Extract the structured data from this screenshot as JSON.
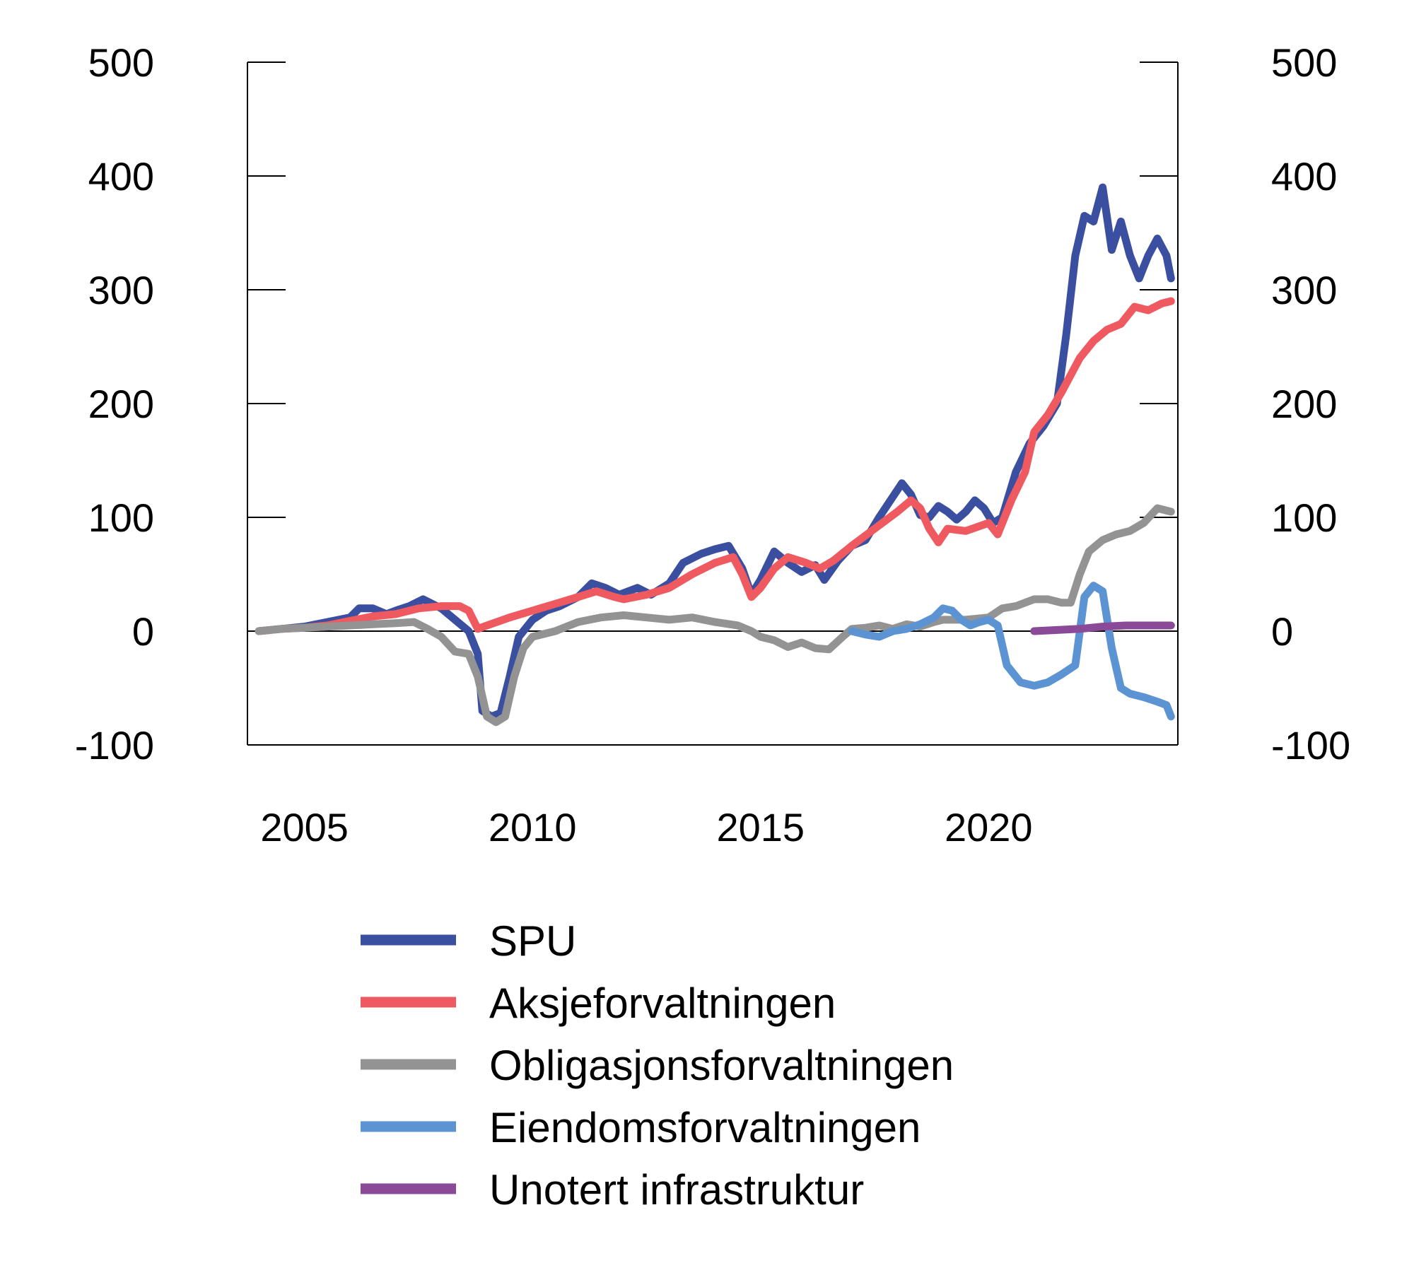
{
  "chart_data": {
    "type": "line",
    "title": "",
    "xlabel": "",
    "ylabel": "",
    "xlim": [
      2003.75,
      2024.15
    ],
    "ylim": [
      -100,
      500
    ],
    "y_ticks": [
      -100,
      0,
      100,
      200,
      300,
      400,
      500
    ],
    "y_tick_labels": [
      "-100",
      "0",
      "100",
      "200",
      "300",
      "400",
      "500"
    ],
    "x_ticks": [
      2005,
      2010,
      2015,
      2020
    ],
    "x_tick_labels": [
      "2005",
      "2010",
      "2015",
      "2020"
    ],
    "grid": false,
    "legend_position": "bottom",
    "series": [
      {
        "name": "SPU",
        "color": "#3b4fa0",
        "points": [
          [
            2004.0,
            0
          ],
          [
            2004.5,
            2
          ],
          [
            2005.0,
            4
          ],
          [
            2005.5,
            8
          ],
          [
            2006.0,
            12
          ],
          [
            2006.2,
            20
          ],
          [
            2006.5,
            20
          ],
          [
            2006.8,
            15
          ],
          [
            2007.0,
            18
          ],
          [
            2007.3,
            22
          ],
          [
            2007.6,
            28
          ],
          [
            2007.8,
            24
          ],
          [
            2008.0,
            20
          ],
          [
            2008.3,
            10
          ],
          [
            2008.6,
            0
          ],
          [
            2008.8,
            -20
          ],
          [
            2008.9,
            -70
          ],
          [
            2009.1,
            -75
          ],
          [
            2009.3,
            -72
          ],
          [
            2009.5,
            -40
          ],
          [
            2009.7,
            -5
          ],
          [
            2010.0,
            10
          ],
          [
            2010.3,
            18
          ],
          [
            2010.6,
            22
          ],
          [
            2011.0,
            30
          ],
          [
            2011.3,
            42
          ],
          [
            2011.6,
            38
          ],
          [
            2011.9,
            32
          ],
          [
            2012.3,
            38
          ],
          [
            2012.6,
            32
          ],
          [
            2013.0,
            42
          ],
          [
            2013.3,
            60
          ],
          [
            2013.7,
            68
          ],
          [
            2014.0,
            72
          ],
          [
            2014.3,
            75
          ],
          [
            2014.6,
            55
          ],
          [
            2014.8,
            32
          ],
          [
            2015.0,
            45
          ],
          [
            2015.3,
            70
          ],
          [
            2015.6,
            60
          ],
          [
            2015.9,
            52
          ],
          [
            2016.2,
            58
          ],
          [
            2016.4,
            45
          ],
          [
            2016.7,
            62
          ],
          [
            2017.0,
            75
          ],
          [
            2017.3,
            80
          ],
          [
            2017.6,
            100
          ],
          [
            2017.9,
            118
          ],
          [
            2018.1,
            130
          ],
          [
            2018.3,
            120
          ],
          [
            2018.5,
            102
          ],
          [
            2018.7,
            100
          ],
          [
            2018.9,
            110
          ],
          [
            2019.1,
            105
          ],
          [
            2019.3,
            98
          ],
          [
            2019.5,
            105
          ],
          [
            2019.7,
            115
          ],
          [
            2019.9,
            108
          ],
          [
            2020.1,
            95
          ],
          [
            2020.3,
            100
          ],
          [
            2020.6,
            140
          ],
          [
            2020.9,
            165
          ],
          [
            2021.2,
            180
          ],
          [
            2021.5,
            200
          ],
          [
            2021.7,
            260
          ],
          [
            2021.9,
            330
          ],
          [
            2022.1,
            365
          ],
          [
            2022.3,
            360
          ],
          [
            2022.5,
            390
          ],
          [
            2022.7,
            335
          ],
          [
            2022.9,
            360
          ],
          [
            2023.1,
            330
          ],
          [
            2023.3,
            310
          ],
          [
            2023.5,
            330
          ],
          [
            2023.7,
            345
          ],
          [
            2023.9,
            330
          ],
          [
            2024.0,
            310
          ]
        ]
      },
      {
        "name": "Aksjeforvaltningen",
        "color": "#ee5a5f",
        "points": [
          [
            2004.0,
            0
          ],
          [
            2004.5,
            2
          ],
          [
            2005.0,
            3
          ],
          [
            2005.5,
            5
          ],
          [
            2006.0,
            9
          ],
          [
            2006.5,
            13
          ],
          [
            2007.0,
            15
          ],
          [
            2007.5,
            20
          ],
          [
            2008.0,
            22
          ],
          [
            2008.4,
            22
          ],
          [
            2008.6,
            18
          ],
          [
            2008.8,
            2
          ],
          [
            2009.0,
            5
          ],
          [
            2009.5,
            12
          ],
          [
            2010.0,
            18
          ],
          [
            2010.5,
            24
          ],
          [
            2011.0,
            30
          ],
          [
            2011.4,
            35
          ],
          [
            2011.8,
            30
          ],
          [
            2012.0,
            28
          ],
          [
            2012.5,
            32
          ],
          [
            2013.0,
            38
          ],
          [
            2013.5,
            50
          ],
          [
            2014.0,
            60
          ],
          [
            2014.4,
            65
          ],
          [
            2014.6,
            50
          ],
          [
            2014.8,
            30
          ],
          [
            2015.0,
            38
          ],
          [
            2015.3,
            55
          ],
          [
            2015.6,
            65
          ],
          [
            2016.0,
            60
          ],
          [
            2016.3,
            55
          ],
          [
            2016.6,
            62
          ],
          [
            2017.0,
            75
          ],
          [
            2017.5,
            90
          ],
          [
            2018.0,
            105
          ],
          [
            2018.3,
            115
          ],
          [
            2018.5,
            108
          ],
          [
            2018.7,
            90
          ],
          [
            2018.9,
            78
          ],
          [
            2019.1,
            90
          ],
          [
            2019.5,
            88
          ],
          [
            2020.0,
            95
          ],
          [
            2020.2,
            85
          ],
          [
            2020.5,
            115
          ],
          [
            2020.8,
            140
          ],
          [
            2021.0,
            175
          ],
          [
            2021.3,
            190
          ],
          [
            2021.6,
            210
          ],
          [
            2022.0,
            240
          ],
          [
            2022.3,
            255
          ],
          [
            2022.6,
            265
          ],
          [
            2022.9,
            270
          ],
          [
            2023.2,
            285
          ],
          [
            2023.5,
            282
          ],
          [
            2023.8,
            288
          ],
          [
            2024.0,
            290
          ]
        ]
      },
      {
        "name": "Obligasjonsforvaltningen",
        "color": "#939393",
        "points": [
          [
            2004.0,
            0
          ],
          [
            2004.5,
            2
          ],
          [
            2005.0,
            3
          ],
          [
            2005.5,
            4
          ],
          [
            2006.0,
            5
          ],
          [
            2006.5,
            6
          ],
          [
            2007.0,
            7
          ],
          [
            2007.4,
            8
          ],
          [
            2007.7,
            2
          ],
          [
            2008.0,
            -5
          ],
          [
            2008.3,
            -18
          ],
          [
            2008.6,
            -20
          ],
          [
            2008.8,
            -40
          ],
          [
            2009.0,
            -75
          ],
          [
            2009.2,
            -80
          ],
          [
            2009.4,
            -75
          ],
          [
            2009.6,
            -40
          ],
          [
            2009.8,
            -15
          ],
          [
            2010.0,
            -5
          ],
          [
            2010.5,
            0
          ],
          [
            2011.0,
            8
          ],
          [
            2011.5,
            12
          ],
          [
            2012.0,
            14
          ],
          [
            2012.5,
            12
          ],
          [
            2013.0,
            10
          ],
          [
            2013.5,
            12
          ],
          [
            2014.0,
            8
          ],
          [
            2014.5,
            5
          ],
          [
            2014.8,
            0
          ],
          [
            2015.0,
            -5
          ],
          [
            2015.3,
            -8
          ],
          [
            2015.6,
            -14
          ],
          [
            2015.9,
            -10
          ],
          [
            2016.2,
            -15
          ],
          [
            2016.5,
            -16
          ],
          [
            2016.8,
            -5
          ],
          [
            2017.0,
            2
          ],
          [
            2017.3,
            3
          ],
          [
            2017.6,
            5
          ],
          [
            2017.9,
            2
          ],
          [
            2018.2,
            6
          ],
          [
            2018.5,
            4
          ],
          [
            2018.8,
            8
          ],
          [
            2019.0,
            10
          ],
          [
            2019.5,
            10
          ],
          [
            2020.0,
            12
          ],
          [
            2020.3,
            20
          ],
          [
            2020.6,
            22
          ],
          [
            2021.0,
            28
          ],
          [
            2021.3,
            28
          ],
          [
            2021.6,
            25
          ],
          [
            2021.8,
            25
          ],
          [
            2022.0,
            50
          ],
          [
            2022.2,
            70
          ],
          [
            2022.5,
            80
          ],
          [
            2022.8,
            85
          ],
          [
            2023.1,
            88
          ],
          [
            2023.4,
            95
          ],
          [
            2023.7,
            108
          ],
          [
            2024.0,
            105
          ]
        ]
      },
      {
        "name": "Eiendomsforvaltningen",
        "color": "#5b93d3",
        "points": [
          [
            2017.0,
            0
          ],
          [
            2017.3,
            -3
          ],
          [
            2017.6,
            -5
          ],
          [
            2017.9,
            0
          ],
          [
            2018.2,
            2
          ],
          [
            2018.5,
            6
          ],
          [
            2018.8,
            12
          ],
          [
            2019.0,
            20
          ],
          [
            2019.2,
            18
          ],
          [
            2019.4,
            10
          ],
          [
            2019.6,
            5
          ],
          [
            2019.8,
            8
          ],
          [
            2020.0,
            10
          ],
          [
            2020.2,
            5
          ],
          [
            2020.4,
            -30
          ],
          [
            2020.7,
            -45
          ],
          [
            2021.0,
            -48
          ],
          [
            2021.3,
            -45
          ],
          [
            2021.6,
            -38
          ],
          [
            2021.9,
            -30
          ],
          [
            2022.1,
            30
          ],
          [
            2022.3,
            40
          ],
          [
            2022.5,
            35
          ],
          [
            2022.7,
            -15
          ],
          [
            2022.9,
            -50
          ],
          [
            2023.1,
            -55
          ],
          [
            2023.4,
            -58
          ],
          [
            2023.7,
            -62
          ],
          [
            2023.9,
            -65
          ],
          [
            2024.0,
            -75
          ]
        ]
      },
      {
        "name": "Unotert infrastruktur",
        "color": "#8b4a97",
        "points": [
          [
            2021.0,
            0
          ],
          [
            2021.5,
            1
          ],
          [
            2022.0,
            2
          ],
          [
            2022.5,
            4
          ],
          [
            2023.0,
            5
          ],
          [
            2023.5,
            5
          ],
          [
            2024.0,
            5
          ]
        ]
      }
    ]
  }
}
